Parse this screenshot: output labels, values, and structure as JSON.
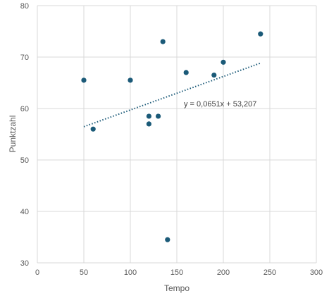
{
  "chart_data": {
    "type": "scatter",
    "title": "",
    "xlabel": "Tempo",
    "ylabel": "Punktzahl",
    "xlim": [
      0,
      300
    ],
    "ylim": [
      30,
      80
    ],
    "x_ticks": [
      0,
      50,
      100,
      150,
      200,
      250,
      300
    ],
    "y_ticks": [
      30,
      40,
      50,
      60,
      70,
      80
    ],
    "grid": true,
    "legend": "none",
    "point_color": "#1b5a78",
    "series": [
      {
        "points": [
          {
            "x": 50,
            "y": 65.5
          },
          {
            "x": 60,
            "y": 56
          },
          {
            "x": 100,
            "y": 65.5
          },
          {
            "x": 120,
            "y": 58.5
          },
          {
            "x": 120,
            "y": 57
          },
          {
            "x": 130,
            "y": 58.5
          },
          {
            "x": 135,
            "y": 73
          },
          {
            "x": 140,
            "y": 34.5
          },
          {
            "x": 160,
            "y": 67
          },
          {
            "x": 190,
            "y": 66.5
          },
          {
            "x": 200,
            "y": 69
          },
          {
            "x": 240,
            "y": 74.5
          }
        ]
      }
    ],
    "trendline": {
      "type": "linear",
      "slope": 0.0651,
      "intercept": 53.207,
      "x_range": [
        50,
        240
      ],
      "equation_label": "y = 0,0651x + 53,207"
    }
  }
}
